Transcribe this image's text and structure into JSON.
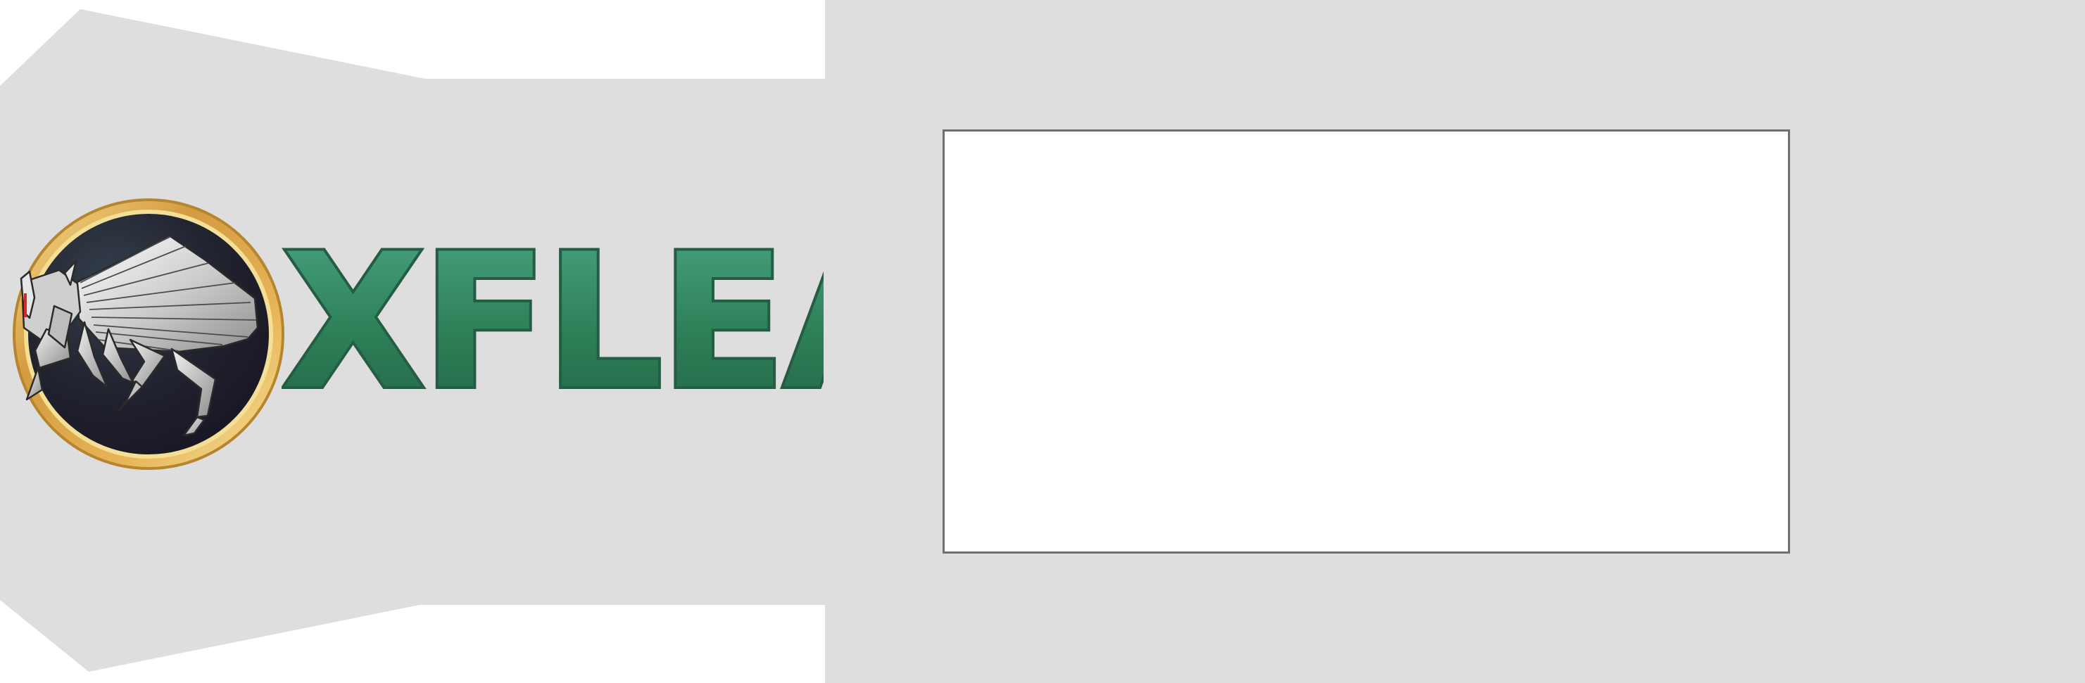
{
  "brand": {
    "name": "XFLEA",
    "icon": "flea-icon",
    "colors": {
      "text_fill": "#2f7d57",
      "text_stroke": "#245c44",
      "ring": "#d9a84a",
      "badge_bg": "#1f1f2b"
    }
  },
  "layout_colors": {
    "page_bg": "#ffffff",
    "gray_panel": "#dedede",
    "frame_border": "#6f6f6f"
  }
}
